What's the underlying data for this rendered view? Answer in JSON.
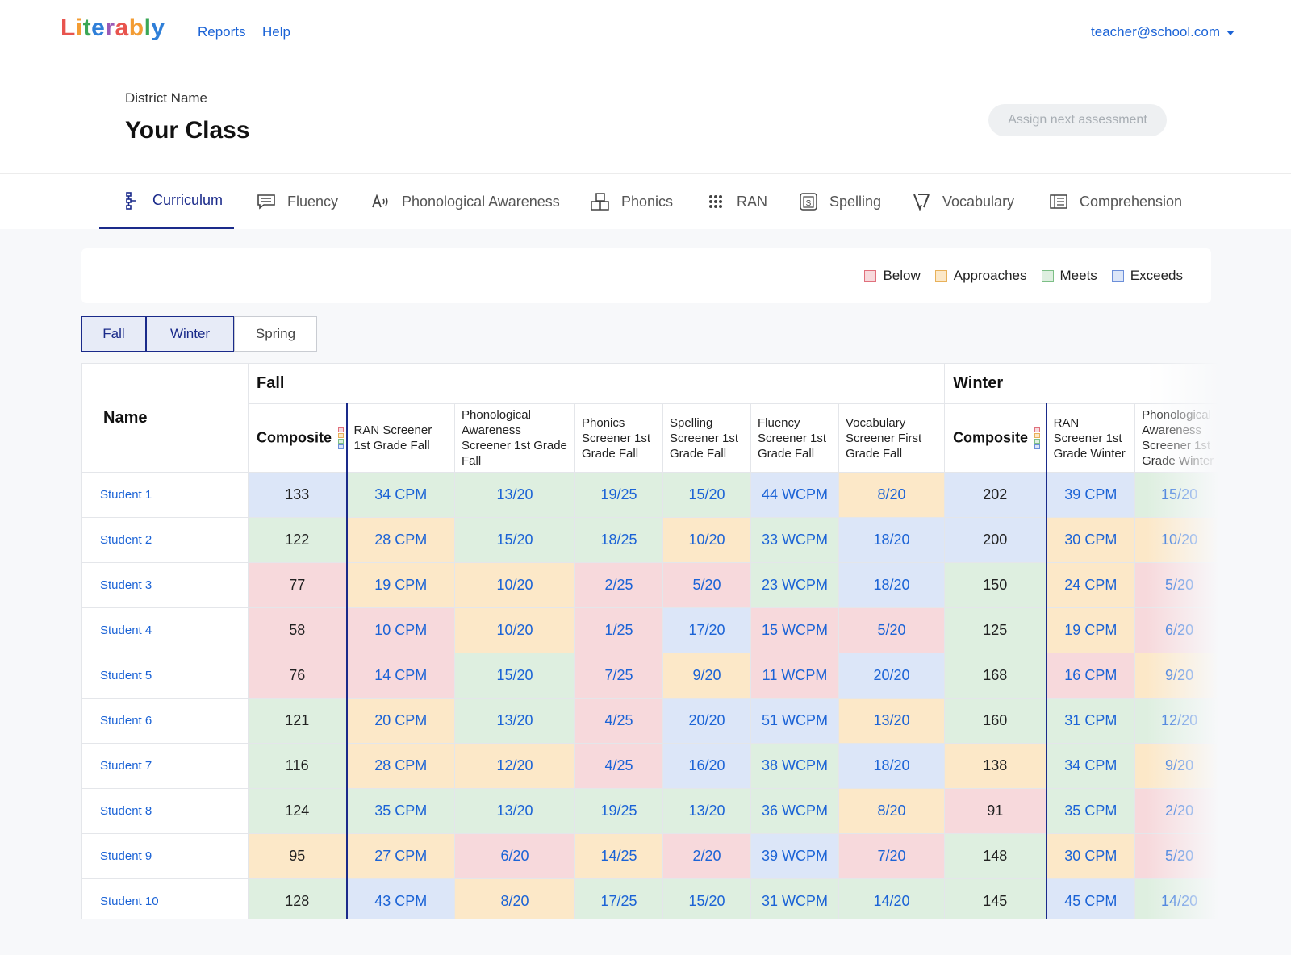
{
  "app": {
    "logo": "Literably",
    "nav": {
      "reports": "Reports",
      "help": "Help"
    },
    "user_email": "teacher@school.com"
  },
  "header": {
    "district": "District Name",
    "title": "Your Class",
    "assign_button": "Assign next assessment"
  },
  "tabs": [
    {
      "label": "Curriculum",
      "icon": "curriculum-icon",
      "active": true
    },
    {
      "label": "Fluency",
      "icon": "speech-bubble-icon"
    },
    {
      "label": "Phonological Awareness",
      "icon": "audio-letter-icon"
    },
    {
      "label": "Phonics",
      "icon": "blocks-icon"
    },
    {
      "label": "RAN",
      "icon": "grid-dots-icon"
    },
    {
      "label": "Spelling",
      "icon": "spelling-s-icon"
    },
    {
      "label": "Vocabulary",
      "icon": "vocabulary-icon"
    },
    {
      "label": "Comprehension",
      "icon": "book-icon"
    }
  ],
  "legend": [
    {
      "label": "Below",
      "fill": "#f7d9dc",
      "border": "#e0707c"
    },
    {
      "label": "Approaches",
      "fill": "#fce8c8",
      "border": "#e8b15a"
    },
    {
      "label": "Meets",
      "fill": "#deefe0",
      "border": "#7cbf86"
    },
    {
      "label": "Exceeds",
      "fill": "#dce6f8",
      "border": "#6c8fd9"
    }
  ],
  "seasons": [
    {
      "label": "Fall",
      "selected": true
    },
    {
      "label": "Winter",
      "selected": true
    },
    {
      "label": "Spring",
      "selected": false
    }
  ],
  "table": {
    "name_header": "Name",
    "groups": [
      {
        "season": "Fall",
        "columns": [
          "Composite",
          "RAN Screener 1st Grade Fall",
          "Phonological Awareness Screener 1st Grade Fall",
          "Phonics Screener 1st Grade Fall",
          "Spelling Screener 1st Grade Fall",
          "Fluency Screener 1st Grade Fall",
          "Vocabulary Screener First Grade Fall"
        ]
      },
      {
        "season": "Winter",
        "columns": [
          "Composite",
          "RAN Screener 1st Grade Winter",
          "Phonological Awareness Screener 1st Grade Winter"
        ]
      }
    ],
    "rows": [
      {
        "name": "Student 1",
        "cells": [
          [
            "133",
            "exceeds"
          ],
          [
            "34 CPM",
            "meets"
          ],
          [
            "13/20",
            "meets"
          ],
          [
            "19/25",
            "meets"
          ],
          [
            "15/20",
            "meets"
          ],
          [
            "44 WCPM",
            "exceeds"
          ],
          [
            "8/20",
            "approaches"
          ],
          [
            "202",
            "exceeds"
          ],
          [
            "39 CPM",
            "exceeds"
          ],
          [
            "15/20",
            "meets"
          ]
        ]
      },
      {
        "name": "Student 2",
        "cells": [
          [
            "122",
            "meets"
          ],
          [
            "28 CPM",
            "approaches"
          ],
          [
            "15/20",
            "meets"
          ],
          [
            "18/25",
            "meets"
          ],
          [
            "10/20",
            "approaches"
          ],
          [
            "33 WCPM",
            "meets"
          ],
          [
            "18/20",
            "exceeds"
          ],
          [
            "200",
            "exceeds"
          ],
          [
            "30 CPM",
            "approaches"
          ],
          [
            "10/20",
            "approaches"
          ]
        ]
      },
      {
        "name": "Student 3",
        "cells": [
          [
            "77",
            "below"
          ],
          [
            "19 CPM",
            "approaches"
          ],
          [
            "10/20",
            "approaches"
          ],
          [
            "2/25",
            "below"
          ],
          [
            "5/20",
            "below"
          ],
          [
            "23 WCPM",
            "meets"
          ],
          [
            "18/20",
            "exceeds"
          ],
          [
            "150",
            "meets"
          ],
          [
            "24 CPM",
            "approaches"
          ],
          [
            "5/20",
            "below"
          ]
        ]
      },
      {
        "name": "Student 4",
        "cells": [
          [
            "58",
            "below"
          ],
          [
            "10 CPM",
            "below"
          ],
          [
            "10/20",
            "approaches"
          ],
          [
            "1/25",
            "below"
          ],
          [
            "17/20",
            "exceeds"
          ],
          [
            "15 WCPM",
            "below"
          ],
          [
            "5/20",
            "below"
          ],
          [
            "125",
            "meets"
          ],
          [
            "19 CPM",
            "approaches"
          ],
          [
            "6/20",
            "below"
          ]
        ]
      },
      {
        "name": "Student 5",
        "cells": [
          [
            "76",
            "below"
          ],
          [
            "14 CPM",
            "below"
          ],
          [
            "15/20",
            "meets"
          ],
          [
            "7/25",
            "below"
          ],
          [
            "9/20",
            "approaches"
          ],
          [
            "11 WCPM",
            "below"
          ],
          [
            "20/20",
            "exceeds"
          ],
          [
            "168",
            "meets"
          ],
          [
            "16 CPM",
            "below"
          ],
          [
            "9/20",
            "approaches"
          ]
        ]
      },
      {
        "name": "Student 6",
        "cells": [
          [
            "121",
            "meets"
          ],
          [
            "20 CPM",
            "approaches"
          ],
          [
            "13/20",
            "meets"
          ],
          [
            "4/25",
            "below"
          ],
          [
            "20/20",
            "exceeds"
          ],
          [
            "51 WCPM",
            "exceeds"
          ],
          [
            "13/20",
            "approaches"
          ],
          [
            "160",
            "meets"
          ],
          [
            "31 CPM",
            "meets"
          ],
          [
            "12/20",
            "meets"
          ]
        ]
      },
      {
        "name": "Student 7",
        "cells": [
          [
            "116",
            "meets"
          ],
          [
            "28 CPM",
            "approaches"
          ],
          [
            "12/20",
            "approaches"
          ],
          [
            "4/25",
            "below"
          ],
          [
            "16/20",
            "exceeds"
          ],
          [
            "38 WCPM",
            "meets"
          ],
          [
            "18/20",
            "exceeds"
          ],
          [
            "138",
            "approaches"
          ],
          [
            "34 CPM",
            "meets"
          ],
          [
            "9/20",
            "approaches"
          ]
        ]
      },
      {
        "name": "Student 8",
        "cells": [
          [
            "124",
            "meets"
          ],
          [
            "35 CPM",
            "meets"
          ],
          [
            "13/20",
            "meets"
          ],
          [
            "19/25",
            "meets"
          ],
          [
            "13/20",
            "meets"
          ],
          [
            "36 WCPM",
            "meets"
          ],
          [
            "8/20",
            "approaches"
          ],
          [
            "91",
            "below"
          ],
          [
            "35 CPM",
            "meets"
          ],
          [
            "2/20",
            "below"
          ]
        ]
      },
      {
        "name": "Student 9",
        "cells": [
          [
            "95",
            "approaches"
          ],
          [
            "27 CPM",
            "approaches"
          ],
          [
            "6/20",
            "below"
          ],
          [
            "14/25",
            "approaches"
          ],
          [
            "2/20",
            "below"
          ],
          [
            "39 WCPM",
            "exceeds"
          ],
          [
            "7/20",
            "below"
          ],
          [
            "148",
            "meets"
          ],
          [
            "30 CPM",
            "approaches"
          ],
          [
            "5/20",
            "below"
          ]
        ]
      },
      {
        "name": "Student 10",
        "cells": [
          [
            "128",
            "meets"
          ],
          [
            "43 CPM",
            "exceeds"
          ],
          [
            "8/20",
            "approaches"
          ],
          [
            "17/25",
            "meets"
          ],
          [
            "15/20",
            "meets"
          ],
          [
            "31 WCPM",
            "meets"
          ],
          [
            "14/20",
            "meets"
          ],
          [
            "145",
            "meets"
          ],
          [
            "45 CPM",
            "exceeds"
          ],
          [
            "14/20",
            "meets"
          ]
        ]
      }
    ]
  }
}
